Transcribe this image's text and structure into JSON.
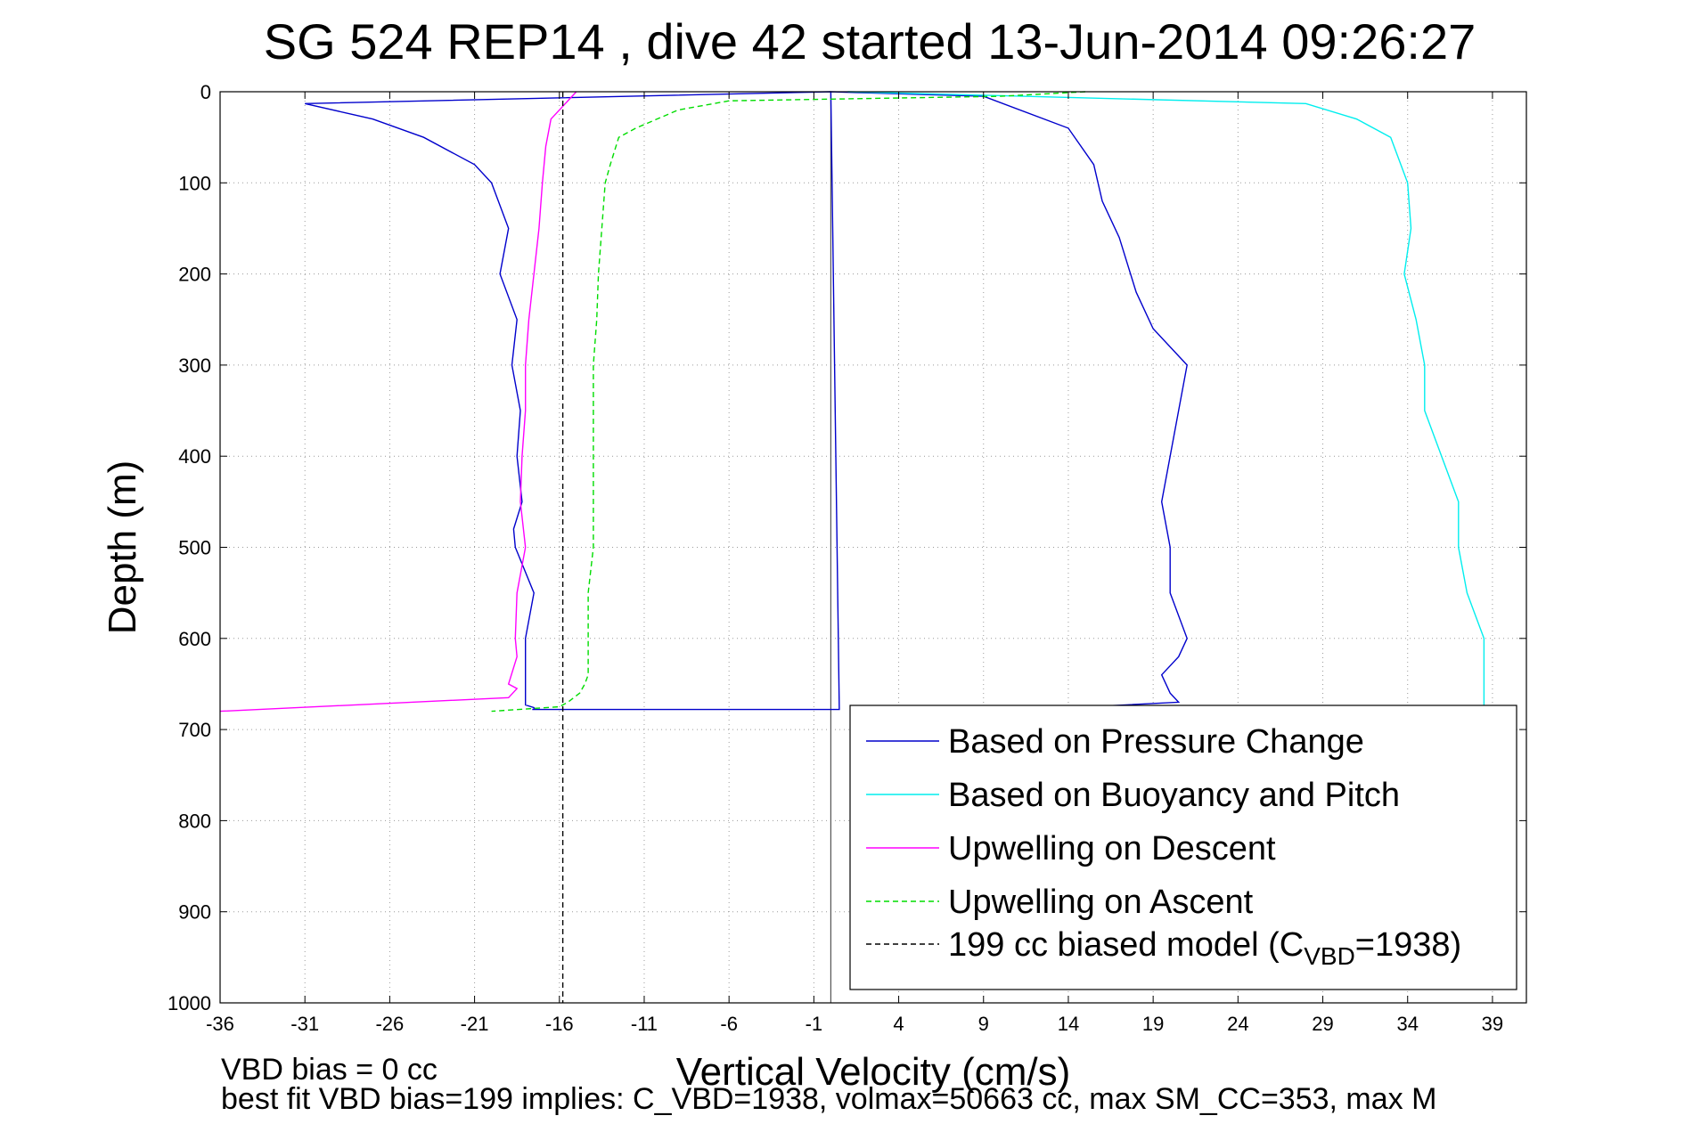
{
  "chart_data": {
    "type": "line",
    "title": "SG 524   REP14  , dive 42 started 13-Jun-2014 09:26:27",
    "xlabel": "Vertical Velocity (cm/s)",
    "ylabel": "Depth (m)",
    "xlim": [
      -36,
      41
    ],
    "ylim": [
      0,
      1000
    ],
    "y_reversed": true,
    "xticks": [
      -36,
      -31,
      -26,
      -21,
      -16,
      -11,
      -6,
      -1,
      4,
      9,
      14,
      19,
      24,
      29,
      34,
      39
    ],
    "yticks": [
      0,
      100,
      200,
      300,
      400,
      500,
      600,
      700,
      800,
      900,
      1000
    ],
    "grid": true,
    "legend_position": "bottom-right",
    "series": [
      {
        "name": "Based on Pressure Change",
        "color": "#0000cc",
        "style": "solid",
        "x": [
          0,
          -31,
          -27,
          -24,
          -21,
          -20,
          -19,
          -19.5,
          -18.5,
          -18.8,
          -18.3,
          -18.5,
          -18.2,
          -18.7,
          -18.6,
          -17.5,
          -18,
          -18,
          -18,
          -18,
          -18,
          -18,
          -17.5,
          -17.5,
          -17.6,
          -17.5,
          -5,
          0.5,
          0,
          9,
          14,
          15.5,
          16,
          17,
          18,
          19,
          21,
          20.5,
          20,
          19.5,
          20,
          20,
          21,
          20.5,
          19.5,
          20,
          20.5,
          10
        ],
        "y": [
          0,
          13,
          30,
          50,
          80,
          100,
          150,
          200,
          250,
          300,
          350,
          400,
          450,
          480,
          500,
          550,
          600,
          620,
          640,
          660,
          670,
          673,
          676,
          678,
          678,
          678,
          678,
          678,
          0,
          5,
          40,
          80,
          120,
          160,
          220,
          260,
          300,
          350,
          400,
          450,
          500,
          550,
          600,
          620,
          640,
          660,
          670,
          680
        ]
      },
      {
        "name": "Based on Buoyancy and Pitch",
        "color": "#00eeee",
        "style": "solid",
        "x": [
          1,
          28,
          31,
          33,
          34,
          34.2,
          33.8,
          34.5,
          35,
          35,
          36,
          37,
          37,
          37.5,
          38.5,
          38.5
        ],
        "y": [
          0,
          13,
          30,
          50,
          100,
          150,
          200,
          250,
          300,
          350,
          400,
          450,
          500,
          550,
          600,
          675
        ]
      },
      {
        "name": "Upwelling on Descent",
        "color": "#ff00ff",
        "style": "solid",
        "x": [
          -15,
          -16.5,
          -16.8,
          -17,
          -17.2,
          -17.5,
          -17.8,
          -18,
          -18,
          -18.2,
          -18.3,
          -18,
          -18.5,
          -18.6,
          -18.5,
          -19,
          -18.5,
          -19,
          -36
        ],
        "y": [
          0,
          30,
          60,
          100,
          150,
          200,
          250,
          300,
          350,
          400,
          450,
          500,
          550,
          600,
          620,
          650,
          655,
          665,
          680
        ]
      },
      {
        "name": "Upwelling on Ascent",
        "color": "#00dd00",
        "style": "dashed",
        "x": [
          15,
          10,
          -6,
          -9,
          -11.5,
          -12.5,
          -13,
          -13.3,
          -13.5,
          -13.7,
          -13.8,
          -14,
          -14,
          -14,
          -14,
          -14,
          -14.3,
          -14.3,
          -14.3,
          -14.5,
          -14.8,
          -15.5,
          -16,
          -20
        ],
        "y": [
          0,
          5,
          10,
          20,
          40,
          50,
          80,
          100,
          150,
          200,
          250,
          300,
          350,
          400,
          450,
          500,
          550,
          600,
          640,
          650,
          660,
          670,
          675,
          680
        ]
      },
      {
        "name": "199 cc biased model (C_VBD=1938)",
        "color": "#000000",
        "style": "dashed",
        "x": [
          -15.8,
          -15.8
        ],
        "y": [
          0,
          1000
        ]
      }
    ],
    "legend": {
      "entries": [
        {
          "label": "Based on Pressure Change",
          "color": "#0000cc",
          "style": "solid"
        },
        {
          "label": "Based on Buoyancy and Pitch",
          "color": "#00eeee",
          "style": "solid"
        },
        {
          "label": "Upwelling on Descent",
          "color": "#ff00ff",
          "style": "solid"
        },
        {
          "label": "Upwelling on Ascent",
          "color": "#00dd00",
          "style": "dashed"
        },
        {
          "label": "199 cc biased model (C",
          "sub": "VBD",
          "suffix": "=1938)",
          "color": "#000000",
          "style": "dashed"
        }
      ]
    }
  },
  "footer": {
    "line1": "VBD bias = 0 cc",
    "line2": "best fit VBD bias=199 implies: C_VBD=1938, volmax=50663 cc, max SM_CC=353, max M"
  }
}
